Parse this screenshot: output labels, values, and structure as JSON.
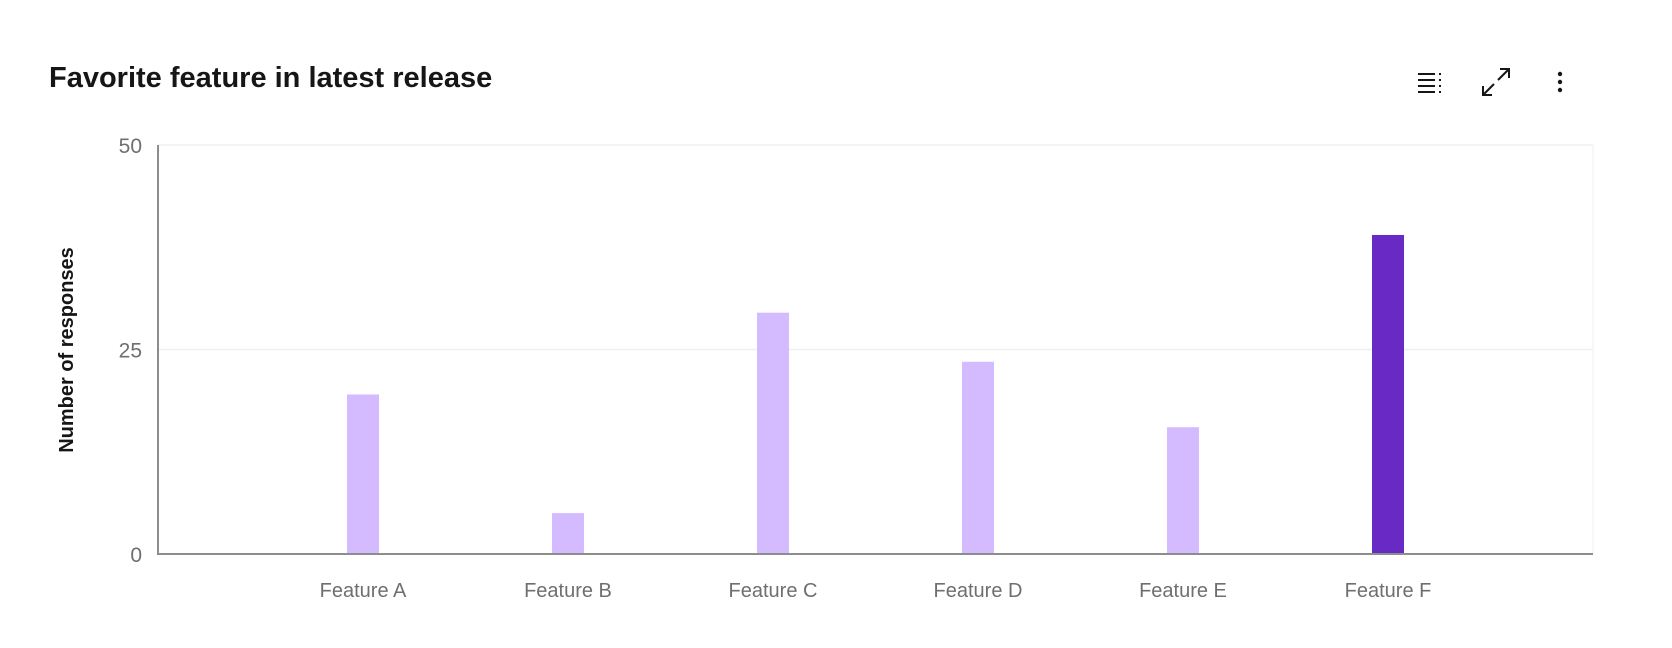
{
  "toolbar": {
    "icons": [
      "table-view-icon",
      "maximize-icon",
      "overflow-menu-icon"
    ]
  },
  "colors": {
    "bar": "#d4bbff",
    "bar_highlight": "#6929c4",
    "axis": "#8d8d8d",
    "grid": "#f0f0f0"
  },
  "chart_data": {
    "type": "bar",
    "title": "Favorite feature in latest release",
    "xlabel": "",
    "ylabel": "Number of responses",
    "categories": [
      "Feature A",
      "Feature B",
      "Feature C",
      "Feature D",
      "Feature E",
      "Feature F"
    ],
    "values": [
      19.5,
      5,
      29.5,
      23.5,
      15.5,
      39
    ],
    "highlighted": "Feature F",
    "ylim": [
      0,
      50
    ],
    "yticks": [
      0,
      25,
      50
    ],
    "grid": true
  }
}
